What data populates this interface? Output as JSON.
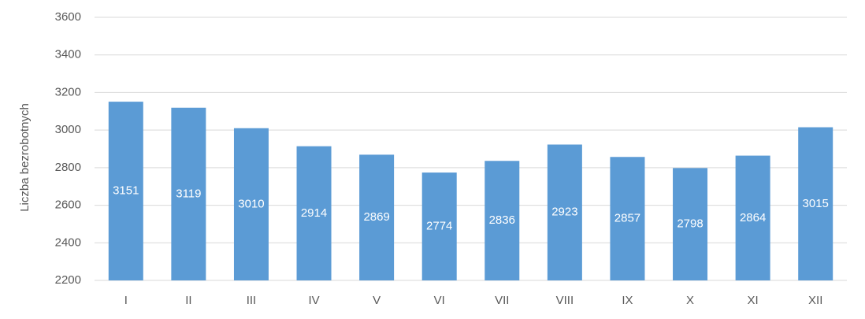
{
  "chart_data": {
    "type": "bar",
    "y_label": "Liczba bezrobotnych",
    "categories": [
      "I",
      "II",
      "III",
      "IV",
      "V",
      "VI",
      "VII",
      "VIII",
      "IX",
      "X",
      "XI",
      "XII"
    ],
    "values": [
      3151,
      3119,
      3010,
      2914,
      2869,
      2774,
      2836,
      2923,
      2857,
      2798,
      2864,
      3015
    ],
    "color": "#5b9bd5",
    "ylim": [
      2200,
      3600
    ],
    "yticks": [
      2200,
      2400,
      2600,
      2800,
      3000,
      3200,
      3400,
      3600
    ],
    "grid": true
  }
}
